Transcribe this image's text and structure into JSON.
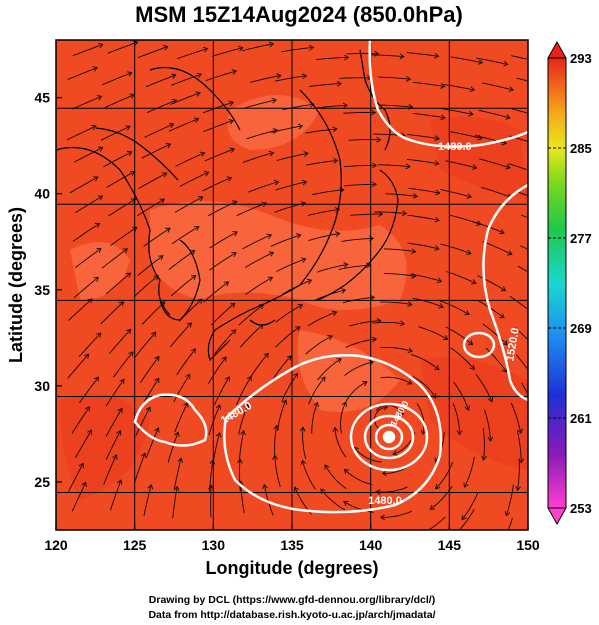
{
  "title": "MSM 15Z14Aug2024 (850.0hPa)",
  "map": {
    "xlabel": "Longitude (degrees)",
    "ylabel": "Latitude  (degrees)",
    "lon_range": [
      120,
      150
    ],
    "lat_range": [
      22.5,
      48
    ],
    "lon_ticks": [
      "120",
      "125",
      "130",
      "135",
      "140",
      "145",
      "150"
    ],
    "lat_ticks": [
      "25",
      "30",
      "35",
      "40",
      "45"
    ],
    "field_colors": {
      "warm": "#f2441e",
      "hot": "#ff7a52",
      "mid": "#e8562a"
    },
    "contour_labels": [
      "1480.0",
      "1520.0",
      "1480.0",
      "1480.0",
      "1480.0"
    ],
    "typhoon_center": {
      "lon": 141.0,
      "lat": 28.2
    }
  },
  "colorbar": {
    "min": 253,
    "max": 293,
    "labels": [
      "293",
      "285",
      "277",
      "269",
      "261",
      "253"
    ]
  },
  "credits": {
    "line1": "Drawing by DCL (https://www.gfd-dennou.org/library/dcl/)",
    "line2": "Data from http://database.rish.kyoto-u.ac.jp/arch/jmadata/"
  }
}
